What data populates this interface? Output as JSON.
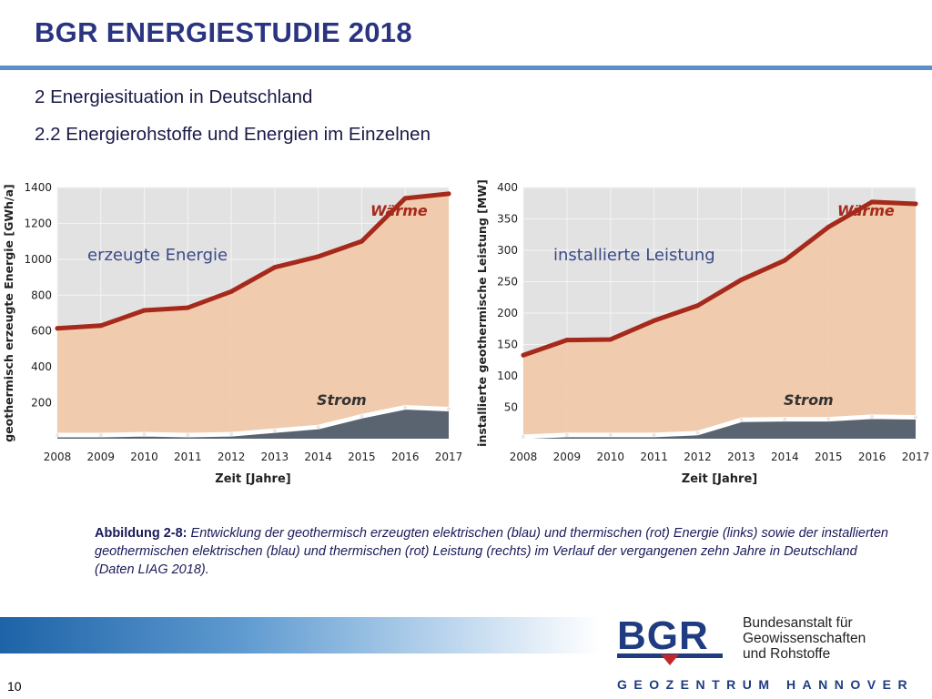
{
  "header": {
    "title": "BGR ENERGIESTUDIE 2018",
    "section": "2 Energiesituation in Deutschland",
    "subsection": "2.2 Energierohstoffe und Energien im Einzelnen"
  },
  "colors": {
    "title": "#2a3480",
    "rule": "#5b8fc9",
    "waerme_line": "#a52a1c",
    "waerme_fill": "#f2c9a8",
    "strom_fill": "#5a6470",
    "strom_line": "#ffffff",
    "plot_bg": "#e2e2e2"
  },
  "chart_data": [
    {
      "type": "area",
      "inset_label": "erzeugte Energie",
      "xlabel": "Zeit [Jahre]",
      "ylabel": "geothermisch erzeugte Energie [GWh/a]",
      "x": [
        2008,
        2009,
        2010,
        2011,
        2012,
        2013,
        2014,
        2015,
        2016,
        2017
      ],
      "xlim": [
        2008,
        2017
      ],
      "ylim": [
        0,
        1400
      ],
      "yticks": [
        200,
        400,
        600,
        800,
        1000,
        1200,
        1400
      ],
      "series": [
        {
          "name": "Wärme",
          "values": [
            615,
            630,
            715,
            730,
            820,
            955,
            1015,
            1100,
            1340,
            1365
          ]
        },
        {
          "name": "Strom",
          "values": [
            20,
            20,
            25,
            20,
            25,
            45,
            65,
            125,
            175,
            165
          ]
        }
      ]
    },
    {
      "type": "area",
      "inset_label": "installierte Leistung",
      "xlabel": "Zeit [Jahre]",
      "ylabel": "installierte geothermische Leistung [MW]",
      "x": [
        2008,
        2009,
        2010,
        2011,
        2012,
        2013,
        2014,
        2015,
        2016,
        2017
      ],
      "xlim": [
        2008,
        2017
      ],
      "ylim": [
        0,
        400
      ],
      "yticks": [
        50,
        100,
        150,
        200,
        250,
        300,
        350,
        400
      ],
      "series": [
        {
          "name": "Wärme",
          "values": [
            133,
            157,
            158,
            188,
            212,
            253,
            284,
            337,
            377,
            374
          ]
        },
        {
          "name": "Strom",
          "values": [
            3,
            6,
            6,
            6,
            9,
            30,
            31,
            31,
            35,
            34
          ]
        }
      ]
    }
  ],
  "caption": {
    "label": "Abbildung 2-8:",
    "text": " Entwicklung der geothermisch erzeugten elektrischen (blau) und thermischen (rot) Energie (links) sowie der installierten geothermischen elektrischen (blau) und thermischen (rot) Leistung (rechts) im Verlauf der vergangenen zehn Jahre in Deutschland (Daten LIAG 2018)."
  },
  "footer": {
    "page_number": "10",
    "logo_letters": "BGR",
    "org_line1": "Bundesanstalt für",
    "org_line2": "Geowissenschaften",
    "org_line3": "und Rohstoffe",
    "geozentrum": "GEOZENTRUM HANNOVER"
  }
}
